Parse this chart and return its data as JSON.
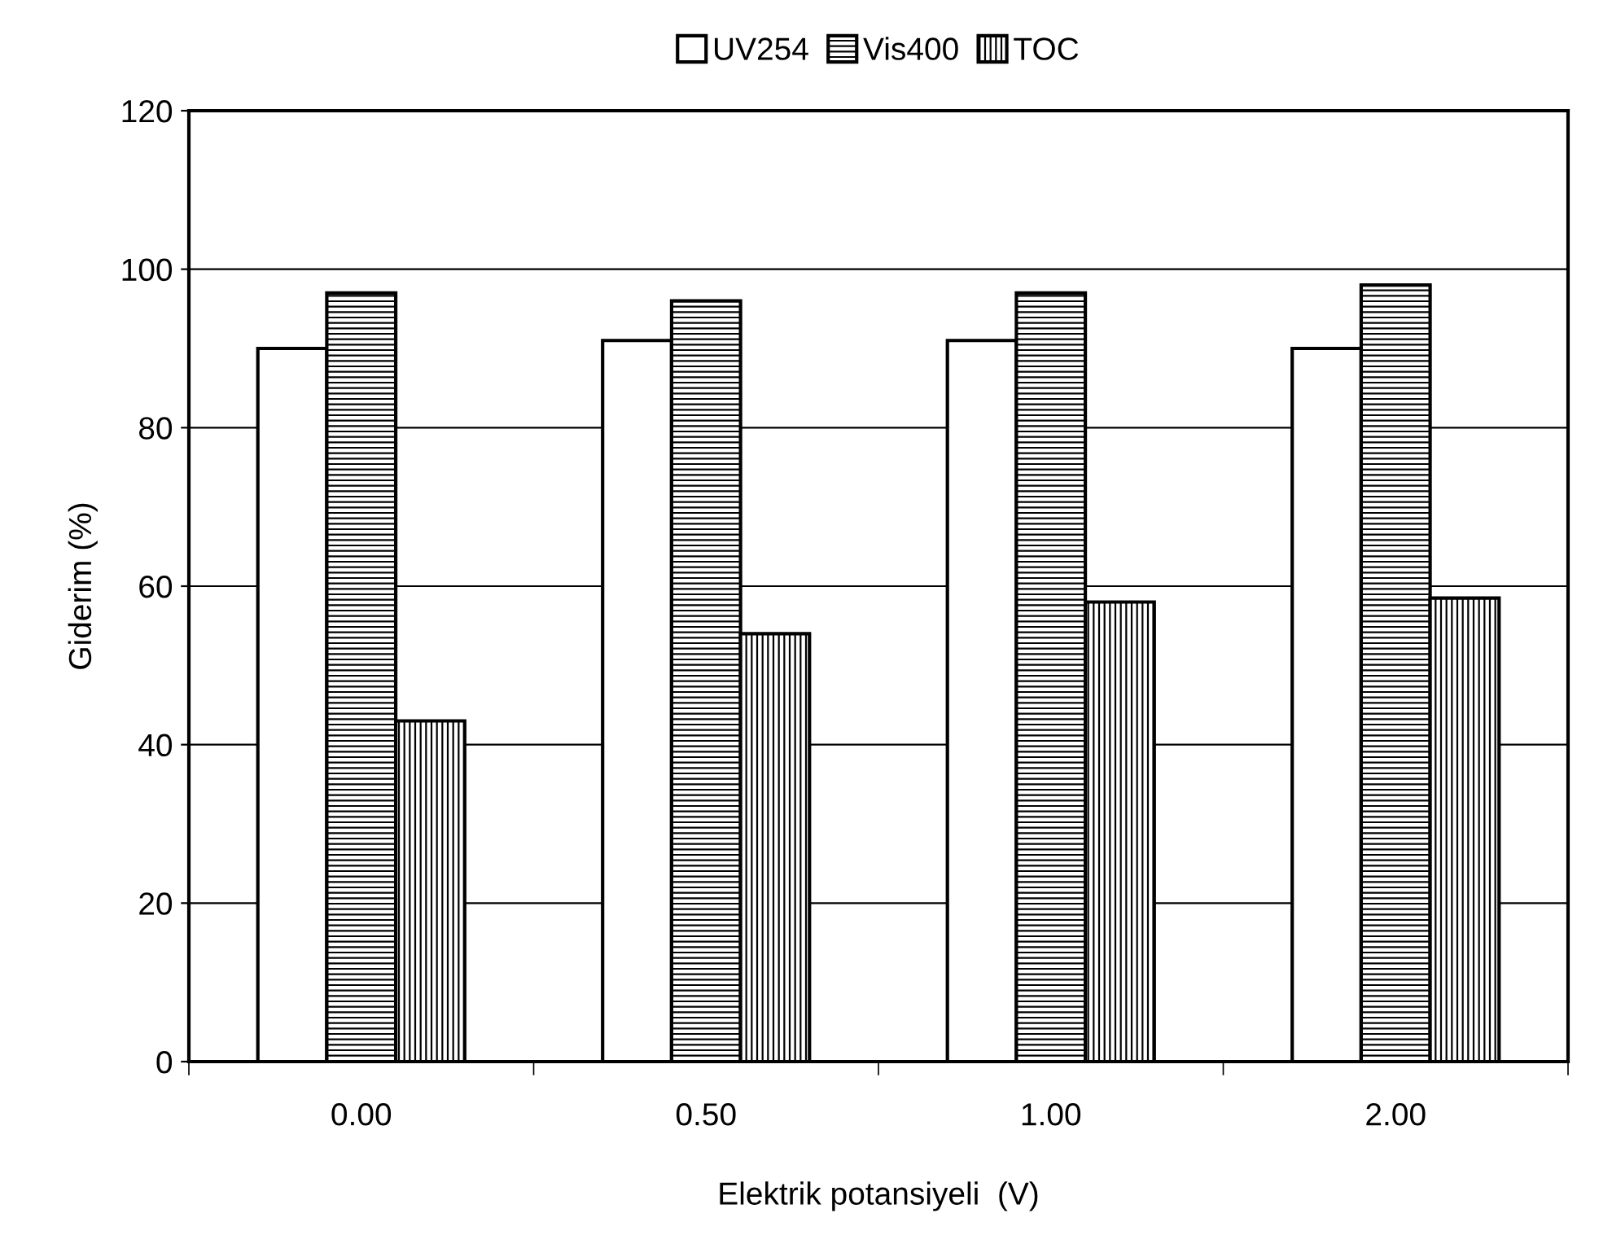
{
  "chart_data": {
    "type": "bar",
    "xlabel": "Elektrik potansiyeli  (V)",
    "ylabel": "Giderim (%)",
    "categories": [
      "0.00",
      "0.50",
      "1.00",
      "2.00"
    ],
    "series": [
      {
        "name": "UV254",
        "color": "#ffffff",
        "values": [
          90,
          91,
          91,
          90
        ]
      },
      {
        "name": "Vis400",
        "color": "#000000",
        "values": [
          97,
          96,
          97,
          98
        ]
      },
      {
        "name": "TOC",
        "color": "#000000",
        "values": [
          43,
          54,
          58,
          58.5
        ]
      }
    ],
    "ylim": [
      0,
      120
    ],
    "yticks": [
      0,
      20,
      40,
      60,
      80,
      100,
      120
    ],
    "grid": "y",
    "legend": "top"
  }
}
